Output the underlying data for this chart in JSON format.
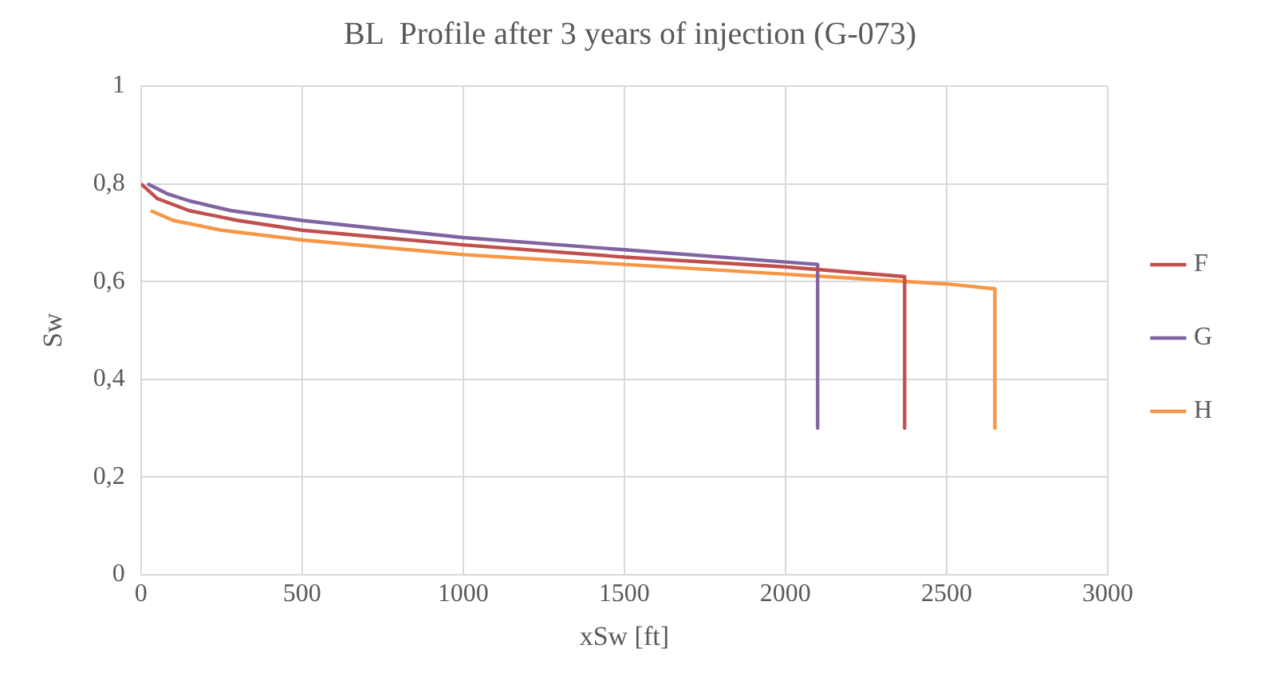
{
  "chart_data": {
    "type": "line",
    "title": "BL  Profile after 3 years of injection (G-073)",
    "xlabel": "xSw [ft]",
    "ylabel": "Sw",
    "xlim": [
      0,
      3000
    ],
    "xticks": [
      0,
      500,
      1000,
      1500,
      2000,
      2500,
      3000
    ],
    "ylim": [
      0,
      1
    ],
    "yticks": [
      0,
      {
        "value": 0.2,
        "label": "0,2"
      },
      {
        "value": 0.4,
        "label": "0,4"
      },
      {
        "value": 0.6,
        "label": "0,6"
      },
      {
        "value": 0.8,
        "label": "0,8"
      },
      1
    ],
    "grid": true,
    "legend": "right",
    "marker": "none",
    "line_style": "solid",
    "series": [
      {
        "name": "F",
        "color": "#c0504d",
        "x": [
          0,
          50,
          150,
          300,
          500,
          1000,
          1500,
          2000,
          2370,
          2370
        ],
        "values": [
          0.8,
          0.77,
          0.745,
          0.725,
          0.705,
          0.675,
          0.65,
          0.63,
          0.61,
          0.3
        ]
      },
      {
        "name": "G",
        "color": "#8064a2",
        "x": [
          20,
          80,
          150,
          280,
          500,
          1000,
          1500,
          2000,
          2100,
          2100
        ],
        "values": [
          0.8,
          0.78,
          0.765,
          0.745,
          0.725,
          0.69,
          0.665,
          0.64,
          0.635,
          0.3
        ]
      },
      {
        "name": "H",
        "color": "#f79646",
        "x": [
          30,
          100,
          250,
          500,
          1000,
          1500,
          2000,
          2500,
          2650,
          2650
        ],
        "values": [
          0.745,
          0.725,
          0.705,
          0.685,
          0.655,
          0.635,
          0.615,
          0.595,
          0.585,
          0.3
        ]
      }
    ]
  }
}
